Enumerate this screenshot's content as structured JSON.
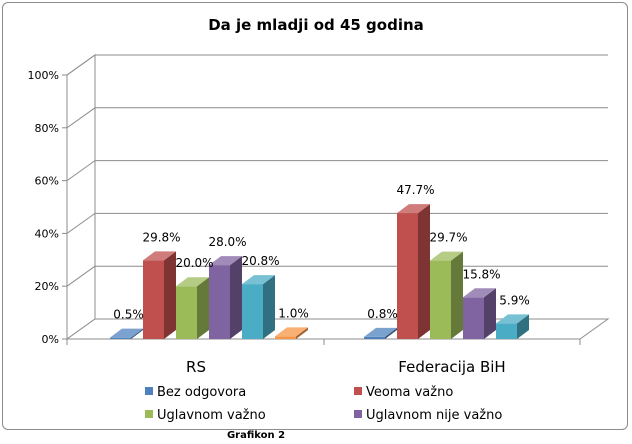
{
  "chart_data": {
    "type": "bar",
    "title": "Da je mladji od 45 godina",
    "categories": [
      "RS",
      "Federacija BiH"
    ],
    "series": [
      {
        "name": "Bez odgovora",
        "values": [
          0.5,
          0.8
        ],
        "labels": [
          "0.5%",
          "0.8%"
        ],
        "color": "#4f81bd"
      },
      {
        "name": "Veoma važno",
        "values": [
          29.8,
          47.7
        ],
        "labels": [
          "29.8%",
          "47.7%"
        ],
        "color": "#c0504d"
      },
      {
        "name": "Uglavnom važno",
        "values": [
          20.0,
          29.7
        ],
        "labels": [
          "20.0%",
          "29.7%"
        ],
        "color": "#9bbb59"
      },
      {
        "name": "Uglavnom nije važno",
        "values": [
          28.0,
          15.8
        ],
        "labels": [
          "28.0%",
          "15.8%"
        ],
        "color": "#8064a2"
      },
      {
        "name": "",
        "values": [
          20.8,
          5.9
        ],
        "labels": [
          "20.8%",
          "5.9%"
        ],
        "color": "#4bacc6"
      },
      {
        "name": "",
        "values": [
          1.0,
          null
        ],
        "labels": [
          "1.0%",
          ""
        ],
        "color": "#f79646"
      }
    ],
    "y_ticks": [
      "0%",
      "20%",
      "40%",
      "60%",
      "80%",
      "100%"
    ],
    "ylim": [
      0,
      100
    ],
    "grid": true,
    "legend_position": "bottom",
    "legend_entries": [
      "Bez odgovora",
      "Veoma važno",
      "Uglavnom važno",
      "Uglavnom nije važno"
    ]
  },
  "caption": "Grafikon 2"
}
